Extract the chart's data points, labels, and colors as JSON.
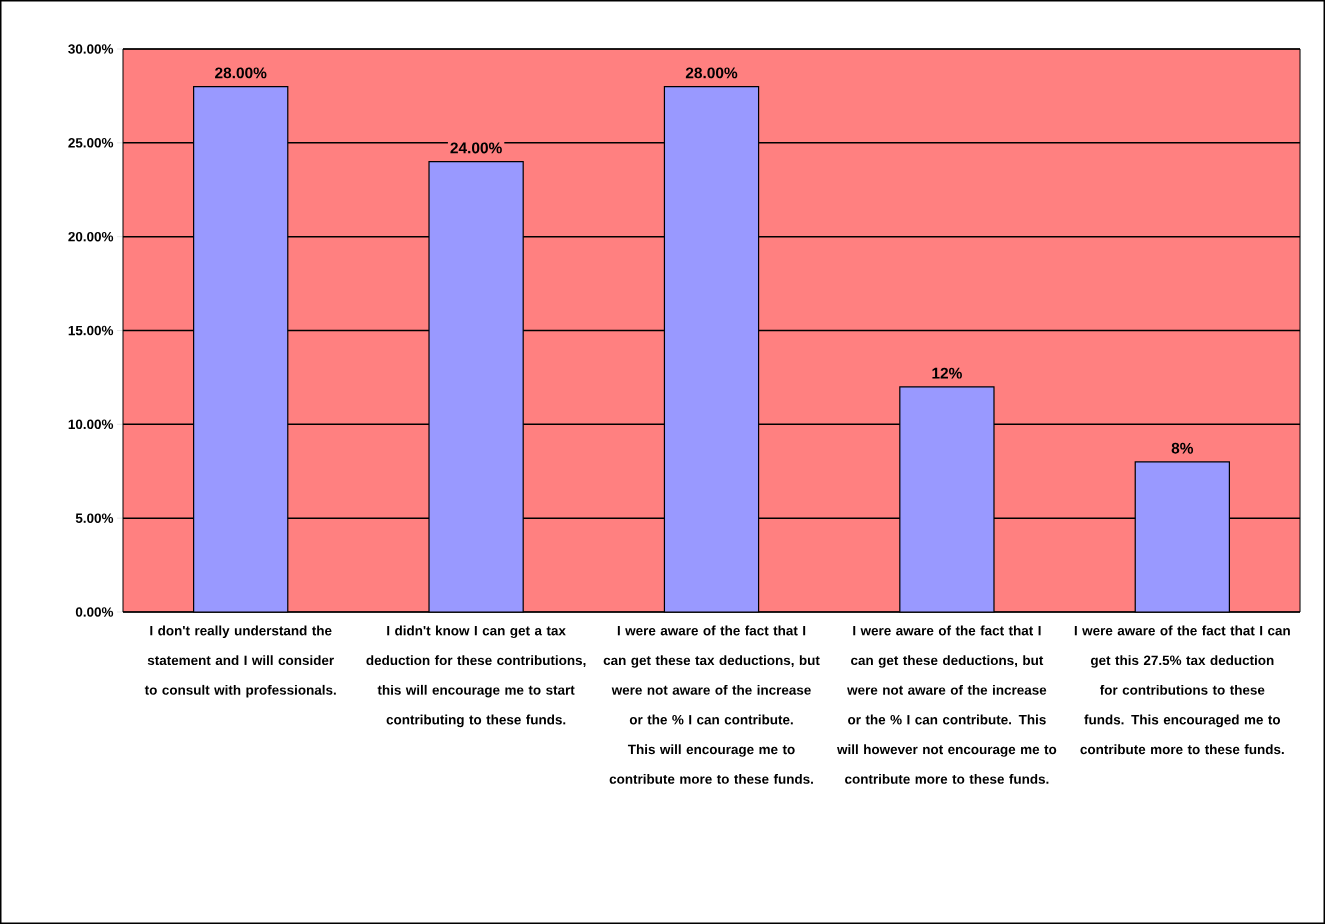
{
  "chart_data": {
    "type": "bar",
    "categories": [
      "I don't really understand the statement and I will consider to consult with professionals.",
      "I didn't know I can get a tax deduction for these contributions, this will encourage me to start contributing to these funds.",
      "I were aware of the fact that I can get these tax deductions, but were not aware of the increase or the % I can contribute. This will encourage me to contribute more to these funds.",
      "I were aware of the fact that I can get these deductions, but were not aware of the increase or the % I can contribute. This will however not encourage me to contribute more to these funds.",
      "I were aware of the fact that I can get this 27.5% tax deduction for contributions to these funds. This encouraged me to contribute more to these funds."
    ],
    "values": [
      28,
      24,
      28,
      12,
      8
    ],
    "value_labels": [
      "28.00%",
      "24.00%",
      "28.00%",
      "12%",
      "8%"
    ],
    "color": "#9999ff",
    "ylim": [
      0,
      30
    ],
    "yticks": [
      {
        "value": 0,
        "label": "0.00%"
      },
      {
        "value": 5,
        "label": "5.00%"
      },
      {
        "value": 10,
        "label": "10.00%"
      },
      {
        "value": 15,
        "label": "15.00%"
      },
      {
        "value": 20,
        "label": "20.00%"
      },
      {
        "value": 25,
        "label": "25.00%"
      },
      {
        "value": 30,
        "label": "30.00%"
      }
    ],
    "grid": "y"
  }
}
